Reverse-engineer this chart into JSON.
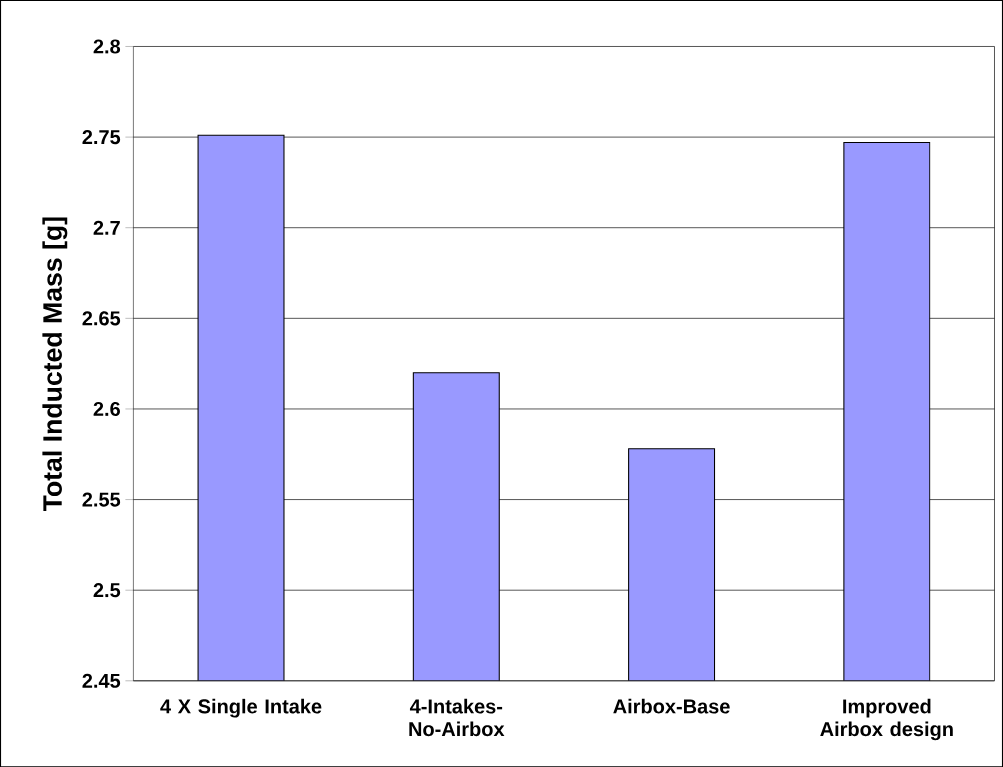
{
  "chart_data": {
    "type": "bar",
    "ylabel": "Total Inducted Mass [g]",
    "categories": [
      "4 X  Single Intake",
      "4-Intakes-No-Airbox",
      "Airbox-Base",
      "Improved Airbox design"
    ],
    "values": [
      2.751,
      2.62,
      2.578,
      2.747
    ],
    "color": "#9999ff",
    "ylim": [
      2.45,
      2.8
    ],
    "yticks": [
      2.45,
      2.5,
      2.55,
      2.6,
      2.65,
      2.7,
      2.75,
      2.8
    ],
    "grid": "y"
  }
}
